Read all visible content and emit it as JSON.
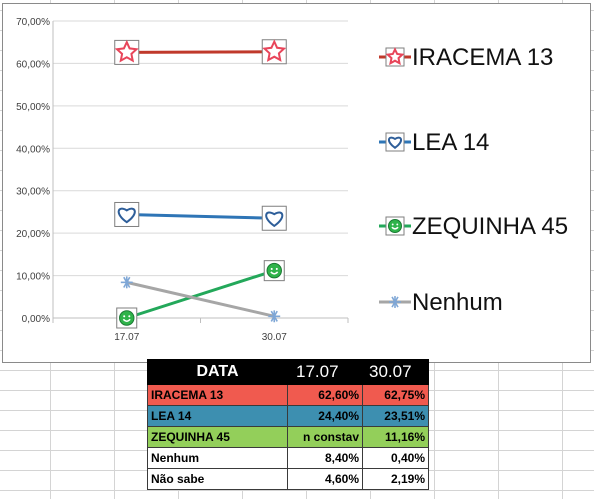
{
  "chart_data": {
    "type": "line",
    "categories": [
      "17.07",
      "30.07"
    ],
    "y_ticks": [
      "0,00%",
      "10,00%",
      "20,00%",
      "30,00%",
      "40,00%",
      "50,00%",
      "60,00%",
      "70,00%"
    ],
    "ylim": [
      0,
      70
    ],
    "grid": true,
    "legend_position": "right",
    "series": [
      {
        "name": "IRACEMA 13",
        "values": [
          62.6,
          62.75
        ],
        "color": "#c0392b",
        "marker": "star-icon",
        "marker_color": "#e8455a"
      },
      {
        "name": "LEA 14",
        "values": [
          24.4,
          23.51
        ],
        "color": "#2e75b6",
        "marker": "heart-icon",
        "marker_color": "#2e5e99"
      },
      {
        "name": "ZEQUINHA 45",
        "values": [
          0,
          11.16
        ],
        "color": "#23a85a",
        "marker": "smiley-icon",
        "marker_color": "#2fb34a"
      },
      {
        "name": "Nenhum",
        "values": [
          8.4,
          0.4
        ],
        "color": "#a6a6a6",
        "marker": "asterisk-icon",
        "marker_color": "#7fa7d6"
      }
    ]
  },
  "table": {
    "header": [
      "DATA",
      "17.07",
      "30.07"
    ],
    "rows": [
      {
        "label": "IRACEMA 13",
        "v1": "62,60%",
        "v2": "62,75%",
        "color": "#f05a4f"
      },
      {
        "label": "LEA 14",
        "v1": "24,40%",
        "v2": "23,51%",
        "color": "#3d8fb0"
      },
      {
        "label": "ZEQUINHA 45",
        "v1": "n constav",
        "v2": "11,16%",
        "color": "#93cf5a"
      },
      {
        "label": "Nenhum",
        "v1": "8,40%",
        "v2": "0,40%",
        "color": "#ffffff"
      },
      {
        "label": "Não sabe",
        "v1": "4,60%",
        "v2": "2,19%",
        "color": "#ffffff"
      }
    ]
  }
}
